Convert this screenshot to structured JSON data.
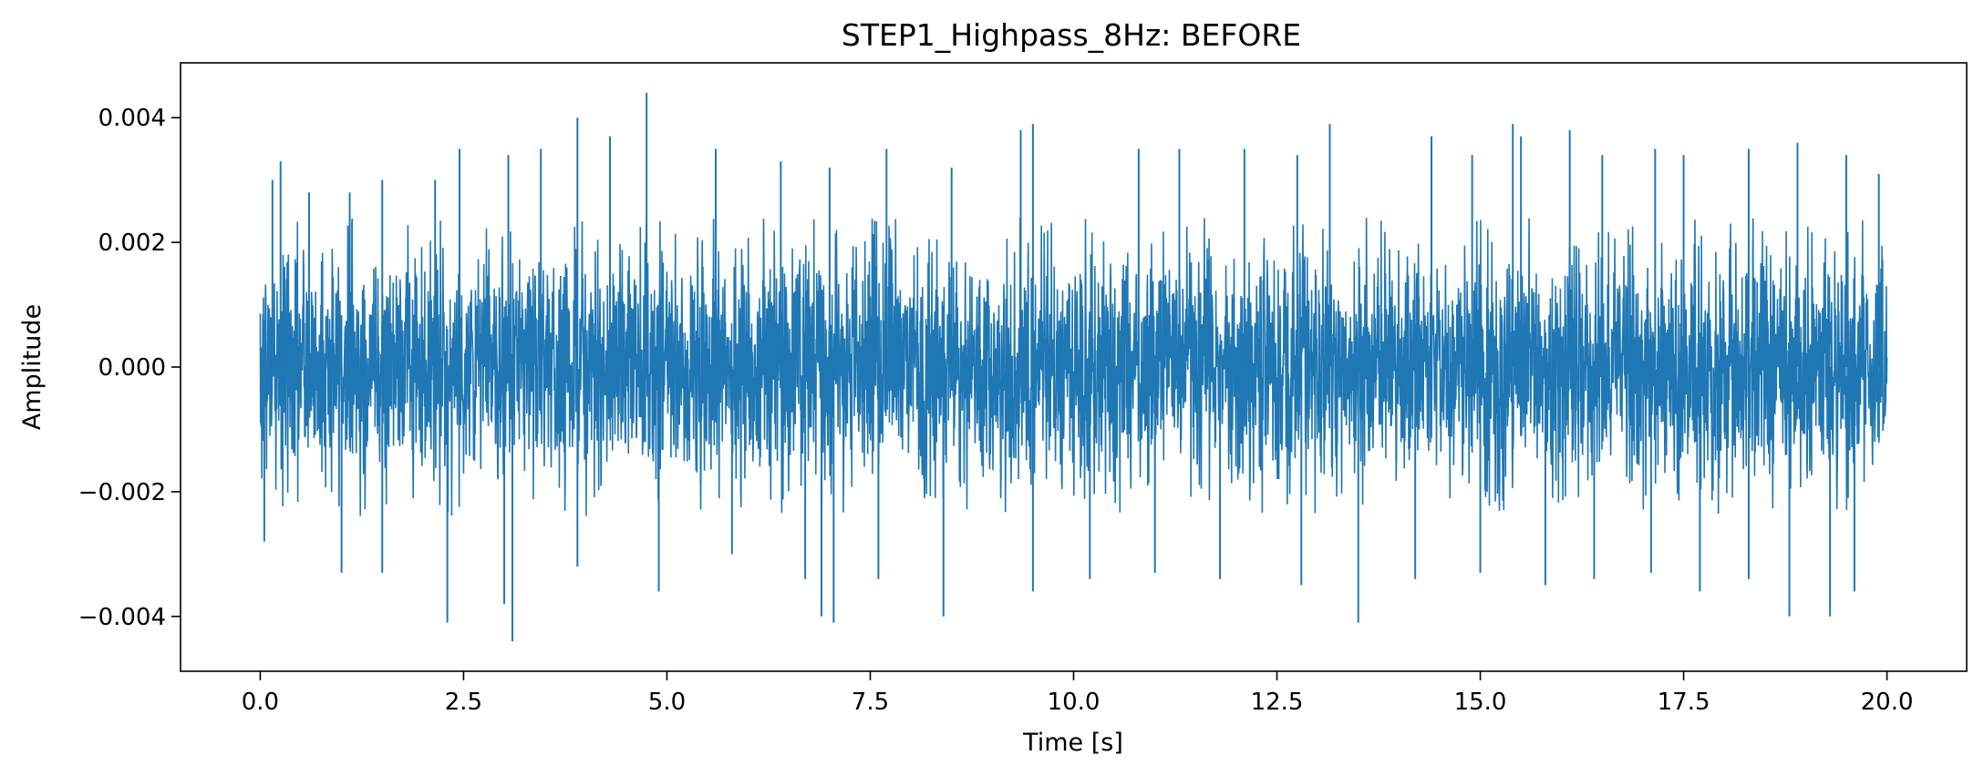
{
  "chart_data": {
    "type": "line",
    "title": "STEP1_Highpass_8Hz: BEFORE",
    "xlabel": "Time [s]",
    "ylabel": "Amplitude",
    "xlim": [
      -0.98,
      20.98
    ],
    "ylim": [
      -0.00488,
      0.00488
    ],
    "xticks": [
      0.0,
      2.5,
      5.0,
      7.5,
      10.0,
      12.5,
      15.0,
      17.5,
      20.0
    ],
    "xtick_labels": [
      "0.0",
      "2.5",
      "5.0",
      "7.5",
      "10.0",
      "12.5",
      "15.0",
      "17.5",
      "20.0"
    ],
    "yticks": [
      -0.004,
      -0.002,
      0.0,
      0.002,
      0.004
    ],
    "ytick_labels": [
      "−0.004",
      "−0.002",
      "0.000",
      "0.002",
      "0.004"
    ],
    "grid": false,
    "series": [
      {
        "color": "#1f77b4",
        "t_range": [
          0.0,
          20.0
        ],
        "typical_envelope": [
          -0.0024,
          0.0024
        ],
        "peaks": [
          {
            "x": 0.15,
            "y": 0.003
          },
          {
            "x": 0.25,
            "y": 0.0033
          },
          {
            "x": 0.6,
            "y": 0.0028
          },
          {
            "x": 1.1,
            "y": 0.0028
          },
          {
            "x": 1.5,
            "y": 0.003
          },
          {
            "x": 2.15,
            "y": 0.003
          },
          {
            "x": 2.45,
            "y": 0.0035
          },
          {
            "x": 3.05,
            "y": 0.0034
          },
          {
            "x": 3.45,
            "y": 0.0035
          },
          {
            "x": 3.9,
            "y": 0.004
          },
          {
            "x": 4.3,
            "y": 0.0037
          },
          {
            "x": 4.75,
            "y": 0.0044
          },
          {
            "x": 5.6,
            "y": 0.0035
          },
          {
            "x": 6.4,
            "y": 0.0033
          },
          {
            "x": 7.0,
            "y": 0.0032
          },
          {
            "x": 7.7,
            "y": 0.0035
          },
          {
            "x": 8.5,
            "y": 0.0032
          },
          {
            "x": 9.35,
            "y": 0.0038
          },
          {
            "x": 9.5,
            "y": 0.0039
          },
          {
            "x": 10.8,
            "y": 0.0035
          },
          {
            "x": 11.3,
            "y": 0.0035
          },
          {
            "x": 12.1,
            "y": 0.0035
          },
          {
            "x": 12.75,
            "y": 0.0034
          },
          {
            "x": 13.15,
            "y": 0.0039
          },
          {
            "x": 14.4,
            "y": 0.0037
          },
          {
            "x": 14.9,
            "y": 0.0034
          },
          {
            "x": 15.4,
            "y": 0.0039
          },
          {
            "x": 15.5,
            "y": 0.0037
          },
          {
            "x": 16.1,
            "y": 0.0038
          },
          {
            "x": 16.5,
            "y": 0.0034
          },
          {
            "x": 17.15,
            "y": 0.0035
          },
          {
            "x": 17.5,
            "y": 0.0034
          },
          {
            "x": 18.3,
            "y": 0.0035
          },
          {
            "x": 18.9,
            "y": 0.0036
          },
          {
            "x": 19.5,
            "y": 0.0034
          },
          {
            "x": 19.9,
            "y": 0.0031
          }
        ],
        "troughs": [
          {
            "x": 0.05,
            "y": -0.0028
          },
          {
            "x": 1.0,
            "y": -0.0033
          },
          {
            "x": 1.5,
            "y": -0.0033
          },
          {
            "x": 2.3,
            "y": -0.0041
          },
          {
            "x": 3.0,
            "y": -0.0038
          },
          {
            "x": 3.1,
            "y": -0.0044
          },
          {
            "x": 3.9,
            "y": -0.0032
          },
          {
            "x": 4.9,
            "y": -0.0036
          },
          {
            "x": 5.8,
            "y": -0.003
          },
          {
            "x": 6.7,
            "y": -0.0034
          },
          {
            "x": 6.9,
            "y": -0.004
          },
          {
            "x": 7.05,
            "y": -0.0041
          },
          {
            "x": 7.6,
            "y": -0.0034
          },
          {
            "x": 8.4,
            "y": -0.004
          },
          {
            "x": 9.5,
            "y": -0.0036
          },
          {
            "x": 10.2,
            "y": -0.0034
          },
          {
            "x": 11.0,
            "y": -0.0033
          },
          {
            "x": 11.8,
            "y": -0.0034
          },
          {
            "x": 12.8,
            "y": -0.0035
          },
          {
            "x": 13.5,
            "y": -0.0041
          },
          {
            "x": 14.2,
            "y": -0.0034
          },
          {
            "x": 15.0,
            "y": -0.0033
          },
          {
            "x": 15.8,
            "y": -0.0035
          },
          {
            "x": 16.4,
            "y": -0.0034
          },
          {
            "x": 17.1,
            "y": -0.0033
          },
          {
            "x": 17.7,
            "y": -0.0036
          },
          {
            "x": 18.3,
            "y": -0.0034
          },
          {
            "x": 18.8,
            "y": -0.004
          },
          {
            "x": 19.3,
            "y": -0.004
          },
          {
            "x": 19.6,
            "y": -0.0036
          }
        ]
      }
    ]
  }
}
